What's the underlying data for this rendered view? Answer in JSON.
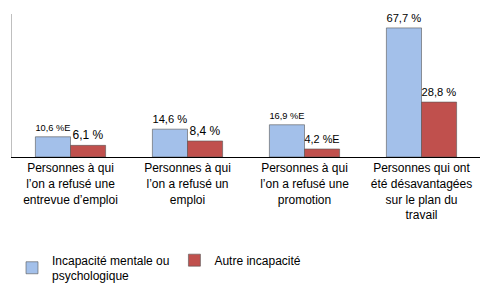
{
  "chart_data": {
    "type": "bar",
    "categories": [
      "Personnes à qui l’on a refusé une entrevue d’emploi",
      "Personnes à qui l’on a refusé un emploi",
      "Personnes à qui l’on a refusé une promotion",
      "Personnes qui ont été désavantagées sur le plan du travail"
    ],
    "series": [
      {
        "name": "Incapacité mentale ou psychologique",
        "color": "#a3c0ea",
        "values": [
          10.6,
          14.6,
          16.9,
          67.7
        ],
        "value_labels": [
          "10,6 %E",
          "14,6 %",
          "16,9 %E",
          "67,7 %"
        ]
      },
      {
        "name": "Autre incapacité",
        "color": "#c0504d",
        "values": [
          6.1,
          8.4,
          4.2,
          28.8
        ],
        "value_labels": [
          "6,1 %",
          "8,4 %",
          "4,2 %E",
          "28,8 %"
        ]
      }
    ],
    "ylim": [
      0,
      75
    ],
    "yticks": [],
    "grid": false,
    "legend": "bottom",
    "data_labels": true,
    "tick_labels": "x"
  }
}
